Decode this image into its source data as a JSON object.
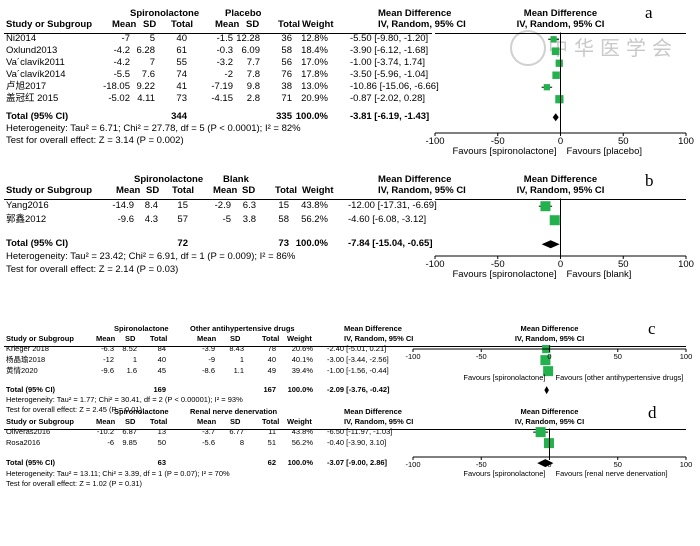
{
  "watermark": "中华医学会",
  "chart_data": [
    {
      "panel_label": "a",
      "type": "forest",
      "group1": "Spironolactone",
      "group2": "Placebo",
      "header": {
        "study": "Study or Subgroup",
        "mean1": "Mean",
        "sd1": "SD",
        "total1": "Total",
        "mean2": "Mean",
        "sd2": "SD",
        "total2": "Total",
        "weight": "Weight",
        "md_title": "Mean Difference",
        "md_sub": "IV, Random, 95% CI",
        "plot_title": "Mean Difference",
        "plot_sub": "IV, Random, 95% CI"
      },
      "studies": [
        {
          "study": "Ni2014",
          "mean1": "-7",
          "sd1": "5",
          "total1": "40",
          "mean2": "-1.5",
          "sd2": "12.28",
          "total2": "36",
          "weight": "12.8%",
          "ci_text": "-5.50 [-9.80, -1.20]",
          "md": -5.5,
          "lo": -9.8,
          "hi": -1.2
        },
        {
          "study": "Oxlund2013",
          "mean1": "-4.2",
          "sd1": "6.28",
          "total1": "61",
          "mean2": "-0.3",
          "sd2": "6.09",
          "total2": "58",
          "weight": "18.4%",
          "ci_text": "-3.90 [-6.12, -1.68]",
          "md": -3.9,
          "lo": -6.12,
          "hi": -1.68
        },
        {
          "study": "Va´clavík2011",
          "mean1": "-4.2",
          "sd1": "7",
          "total1": "55",
          "mean2": "-3.2",
          "sd2": "7.7",
          "total2": "56",
          "weight": "17.0%",
          "ci_text": "-1.00 [-3.74, 1.74]",
          "md": -1.0,
          "lo": -3.74,
          "hi": 1.74
        },
        {
          "study": "Va´clavík2014",
          "mean1": "-5.5",
          "sd1": "7.6",
          "total1": "74",
          "mean2": "-2",
          "sd2": "7.8",
          "total2": "76",
          "weight": "17.8%",
          "ci_text": "-3.50 [-5.96, -1.04]",
          "md": -3.5,
          "lo": -5.96,
          "hi": -1.04
        },
        {
          "study": "卢旭2017",
          "mean1": "-18.05",
          "sd1": "9.22",
          "total1": "41",
          "mean2": "-7.19",
          "sd2": "9.8",
          "total2": "38",
          "weight": "13.0%",
          "ci_text": "-10.86 [-15.06, -6.66]",
          "md": -10.86,
          "lo": -15.06,
          "hi": -6.66
        },
        {
          "study": "盖冠红 2015",
          "mean1": "-5.02",
          "sd1": "4.11",
          "total1": "73",
          "mean2": "-4.15",
          "sd2": "2.8",
          "total2": "71",
          "weight": "20.9%",
          "ci_text": "-0.87 [-2.02, 0.28]",
          "md": -0.87,
          "lo": -2.02,
          "hi": 0.28
        }
      ],
      "total": {
        "label": "Total (95% CI)",
        "total1": "344",
        "total2": "335",
        "weight": "100.0%",
        "ci_text": "-3.81 [-6.19, -1.43]",
        "md": -3.81,
        "lo": -6.19,
        "hi": -1.43
      },
      "heterogeneity": "Heterogeneity: Tau² = 6.71; Chi² = 27.78, df = 5 (P < 0.0001); I² = 82%",
      "overall": "Test for overall effect: Z = 3.14 (P = 0.002)",
      "axis": {
        "ticks": [
          -100,
          -50,
          0,
          50,
          100
        ],
        "tick_labels": [
          "-100",
          "-50",
          "0",
          "50",
          "100"
        ],
        "xlim": [
          -100,
          100
        ]
      },
      "favours_left": "Favours [spironolactone]",
      "favours_right": "Favours [placebo]"
    },
    {
      "panel_label": "b",
      "type": "forest",
      "group1": "Spironolactone",
      "group2": "Blank",
      "header": {
        "study": "Study or Subgroup",
        "mean1": "Mean",
        "sd1": "SD",
        "total1": "Total",
        "mean2": "Mean",
        "sd2": "SD",
        "total2": "Total",
        "weight": "Weight",
        "md_title": "Mean Difference",
        "md_sub": "IV, Random, 95% CI",
        "plot_title": "Mean Difference",
        "plot_sub": "IV, Random, 95% CI"
      },
      "studies": [
        {
          "study": "Yang2016",
          "mean1": "-14.9",
          "sd1": "8.4",
          "total1": "15",
          "mean2": "-2.9",
          "sd2": "6.3",
          "total2": "15",
          "weight": "43.8%",
          "ci_text": "-12.00 [-17.31, -6.69]",
          "md": -12.0,
          "lo": -17.31,
          "hi": -6.69
        },
        {
          "study": "郭鑫2012",
          "mean1": "-9.6",
          "sd1": "4.3",
          "total1": "57",
          "mean2": "-5",
          "sd2": "3.8",
          "total2": "58",
          "weight": "56.2%",
          "ci_text": "-4.60 [-6.08, -3.12]",
          "md": -4.6,
          "lo": -6.08,
          "hi": -3.12
        }
      ],
      "total": {
        "label": "Total (95% CI)",
        "total1": "72",
        "total2": "73",
        "weight": "100.0%",
        "ci_text": "-7.84 [-15.04, -0.65]",
        "md": -7.84,
        "lo": -15.04,
        "hi": -0.65
      },
      "heterogeneity": "Heterogeneity: Tau² = 23.42; Chi² = 6.91, df = 1 (P = 0.009); I² = 86%",
      "overall": "Test for overall effect: Z = 2.14 (P = 0.03)",
      "axis": {
        "ticks": [
          -100,
          -50,
          0,
          50,
          100
        ],
        "tick_labels": [
          "-100",
          "-50",
          "0",
          "50",
          "100"
        ],
        "xlim": [
          -100,
          100
        ]
      },
      "favours_left": "Favours [spironolactone]",
      "favours_right": "Favours [blank]"
    },
    {
      "panel_label": "c",
      "type": "forest",
      "group1": "Spironolactone",
      "group2": "Other antihypertensive drugs",
      "header": {
        "study": "Study or Subgroup",
        "mean1": "Mean",
        "sd1": "SD",
        "total1": "Total",
        "mean2": "Mean",
        "sd2": "SD",
        "total2": "Total",
        "weight": "Weight",
        "md_title": "Mean Difference",
        "md_sub": "IV, Random, 95% CI",
        "plot_title": "Mean Difference",
        "plot_sub": "IV, Random, 95% CI"
      },
      "studies": [
        {
          "study": "Krieger 2018",
          "mean1": "-6.3",
          "sd1": "8.52",
          "total1": "84",
          "mean2": "-3.9",
          "sd2": "8.43",
          "total2": "78",
          "weight": "20.6%",
          "ci_text": "-2.40 [-5.01, 0.21]",
          "md": -2.4,
          "lo": -5.01,
          "hi": 0.21
        },
        {
          "study": "杨晶瑜2018",
          "mean1": "-12",
          "sd1": "1",
          "total1": "40",
          "mean2": "-9",
          "sd2": "1",
          "total2": "40",
          "weight": "40.1%",
          "ci_text": "-3.00 [-3.44, -2.56]",
          "md": -3.0,
          "lo": -3.44,
          "hi": -2.56
        },
        {
          "study": "黄情2020",
          "mean1": "-9.6",
          "sd1": "1.6",
          "total1": "45",
          "mean2": "-8.6",
          "sd2": "1.1",
          "total2": "49",
          "weight": "39.4%",
          "ci_text": "-1.00 [-1.56, -0.44]",
          "md": -1.0,
          "lo": -1.56,
          "hi": -0.44
        }
      ],
      "total": {
        "label": "Total (95% CI)",
        "total1": "169",
        "total2": "167",
        "weight": "100.0%",
        "ci_text": "-2.09 [-3.76, -0.42]",
        "md": -2.09,
        "lo": -3.76,
        "hi": -0.42
      },
      "heterogeneity": "Heterogeneity: Tau² = 1.77; Chi² = 30.41, df = 2 (P < 0.00001); I² = 93%",
      "overall": "Test for overall effect: Z = 2.45 (P = 0.01)",
      "axis": {
        "ticks": [
          -100,
          -50,
          0,
          50,
          100
        ],
        "tick_labels": [
          "-100",
          "-50",
          "0",
          "50",
          "100"
        ],
        "xlim": [
          -100,
          100
        ]
      },
      "favours_left": "Favours [spironolactone]",
      "favours_right": "Favours [other antihypertensive drugs]"
    },
    {
      "panel_label": "d",
      "type": "forest",
      "group1": "Spironolactone",
      "group2": "Renal nerve denervation",
      "header": {
        "study": "Study or Subgroup",
        "mean1": "Mean",
        "sd1": "SD",
        "total1": "Total",
        "mean2": "Mean",
        "sd2": "SD",
        "total2": "Total",
        "weight": "Weight",
        "md_title": "Mean Difference",
        "md_sub": "IV, Random, 95% CI",
        "plot_title": "Mean Difference",
        "plot_sub": "IV, Random, 95% CI"
      },
      "studies": [
        {
          "study": "Oliveras2016",
          "mean1": "-10.2",
          "sd1": "6.87",
          "total1": "13",
          "mean2": "-3.7",
          "sd2": "6.77",
          "total2": "11",
          "weight": "43.8%",
          "ci_text": "-6.50 [-11.97, -1.03]",
          "md": -6.5,
          "lo": -11.97,
          "hi": -1.03
        },
        {
          "study": "Rosa2016",
          "mean1": "-6",
          "sd1": "9.85",
          "total1": "50",
          "mean2": "-5.6",
          "sd2": "8",
          "total2": "51",
          "weight": "56.2%",
          "ci_text": "-0.40 [-3.90, 3.10]",
          "md": -0.4,
          "lo": -3.9,
          "hi": 3.1
        }
      ],
      "total": {
        "label": "Total (95% CI)",
        "total1": "63",
        "total2": "62",
        "weight": "100.0%",
        "ci_text": "-3.07 [-9.00, 2.86]",
        "md": -3.07,
        "lo": -9.0,
        "hi": 2.86
      },
      "heterogeneity": "Heterogeneity: Tau² = 13.11; Chi² = 3.39, df = 1 (P = 0.07); I² = 70%",
      "overall": "Test for overall effect: Z = 1.02 (P = 0.31)",
      "axis": {
        "ticks": [
          -100,
          -50,
          0,
          50,
          100
        ],
        "tick_labels": [
          "-100",
          "-50",
          "0",
          "50",
          "100"
        ],
        "xlim": [
          -100,
          100
        ]
      },
      "favours_left": "Favours [spironolactone]",
      "favours_right": "Favours [renal nerve denervation]"
    }
  ],
  "colors": {
    "marker": "#22b14c",
    "diamond": "#000000",
    "text": "#000000"
  }
}
